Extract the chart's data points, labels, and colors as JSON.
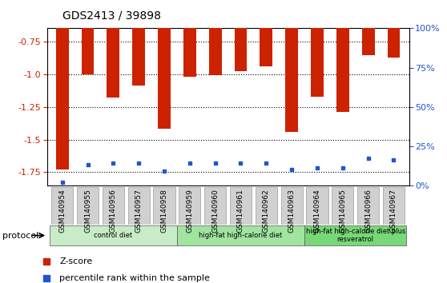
{
  "title": "GDS2413 / 39898",
  "samples": [
    "GSM140954",
    "GSM140955",
    "GSM140956",
    "GSM140957",
    "GSM140958",
    "GSM140959",
    "GSM140960",
    "GSM140961",
    "GSM140962",
    "GSM140963",
    "GSM140964",
    "GSM140965",
    "GSM140966",
    "GSM140967"
  ],
  "zscore": [
    -1.73,
    -1.0,
    -1.18,
    -1.09,
    -1.42,
    -1.02,
    -1.01,
    -0.975,
    -0.94,
    -1.44,
    -1.17,
    -1.29,
    -0.855,
    -0.875
  ],
  "percentile": [
    2,
    13,
    14,
    14,
    9,
    14,
    14,
    14,
    14,
    10,
    11,
    11,
    17,
    16
  ],
  "groups": [
    {
      "label": "control diet",
      "start": 0,
      "end": 5,
      "color": "#c8ecc8"
    },
    {
      "label": "high-fat high-calorie diet",
      "start": 5,
      "end": 10,
      "color": "#a0e4a0"
    },
    {
      "label": "high-fat high-calorie diet plus\nresveratrol",
      "start": 10,
      "end": 14,
      "color": "#78d878"
    }
  ],
  "ymin": -1.85,
  "ymax": -0.65,
  "yticks": [
    -1.75,
    -1.5,
    -1.25,
    -1.0,
    -0.75
  ],
  "right_pct_ticks": [
    0,
    25,
    50,
    75,
    100
  ],
  "bar_color": "#cc2200",
  "percentile_color": "#2255cc",
  "left_axis_color": "#cc2200",
  "right_axis_color": "#2255cc",
  "bg_xtick": "#d0d0d0",
  "title_fontsize": 10,
  "protocol_label": "protocol",
  "legend_zscore": "Z-score",
  "legend_percentile": "percentile rank within the sample"
}
